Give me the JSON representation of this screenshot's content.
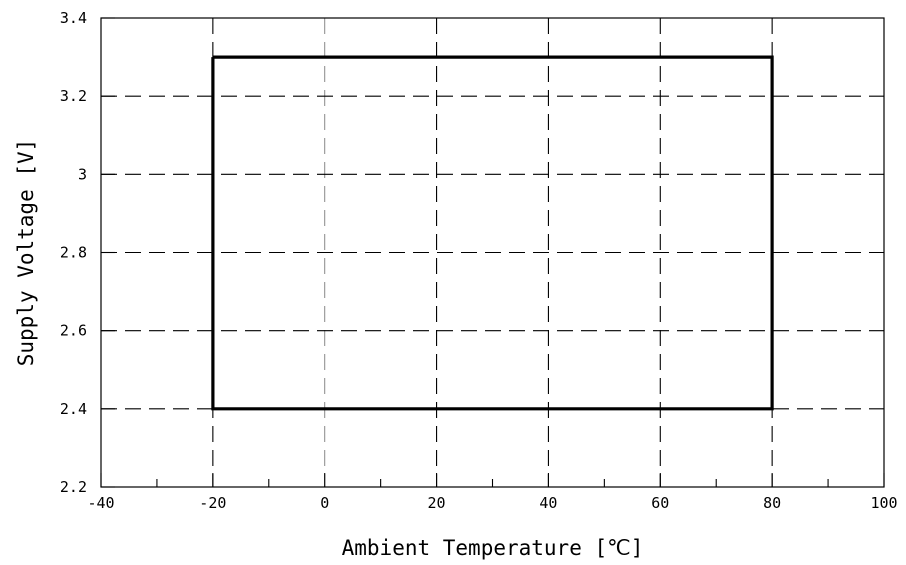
{
  "chart_data": {
    "type": "line",
    "title": "",
    "xlabel": "Ambient Temperature [℃]",
    "ylabel": "Supply Voltage [V]",
    "xlim": [
      -40,
      100
    ],
    "ylim": [
      2.2,
      3.4
    ],
    "x_ticks": [
      -40,
      -20,
      0,
      20,
      40,
      60,
      80,
      100
    ],
    "x_tick_labels": [
      "-40",
      "-20",
      "0",
      "20",
      "40",
      "60",
      "80",
      "100"
    ],
    "y_ticks": [
      2.2,
      2.4,
      2.6,
      2.8,
      3.0,
      3.2,
      3.4
    ],
    "y_tick_labels": [
      "2.2",
      "2.4",
      "2.6",
      "2.8",
      "3",
      "3.2",
      "3.4"
    ],
    "x_minor_step": 10,
    "grid": true,
    "grid_style": "dashed",
    "legend": "none",
    "series": [
      {
        "x": [
          -20,
          80,
          80,
          -20,
          -20
        ],
        "y": [
          3.3,
          3.3,
          2.4,
          2.4,
          3.3
        ],
        "closed": true,
        "color": "#000000"
      }
    ]
  }
}
